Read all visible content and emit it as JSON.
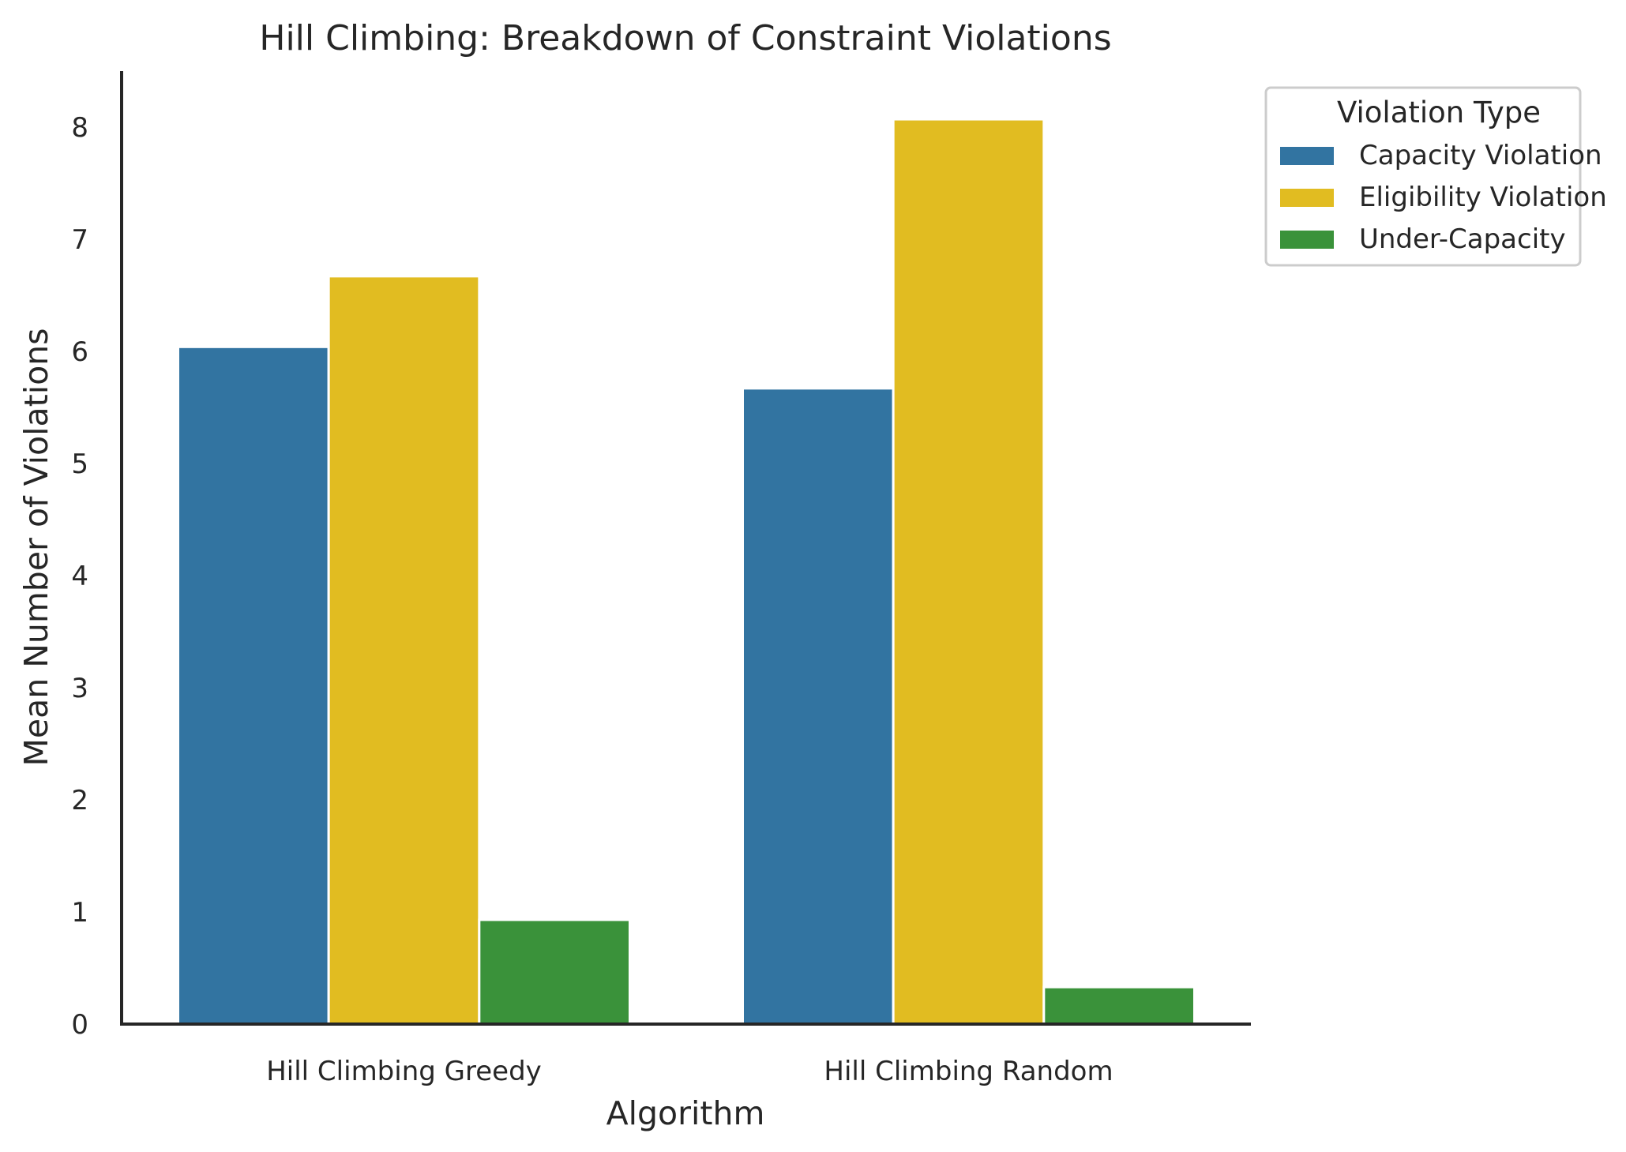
{
  "chart_data": {
    "type": "bar",
    "title": "Hill Climbing: Breakdown of Constraint Violations",
    "xlabel": "Algorithm",
    "ylabel": "Mean Number of Violations",
    "categories": [
      "Hill Climbing Greedy",
      "Hill Climbing Random"
    ],
    "series": [
      {
        "name": "Capacity Violation",
        "values": [
          6.04,
          5.67
        ],
        "color": "#3274a1"
      },
      {
        "name": "Eligibility Violation",
        "values": [
          6.67,
          8.07
        ],
        "color": "#e1bc21"
      },
      {
        "name": "Under-Capacity",
        "values": [
          0.93,
          0.33
        ],
        "color": "#3a923a"
      }
    ],
    "ylim": [
      0,
      8.5
    ],
    "yticks": [
      0,
      1,
      2,
      3,
      4,
      5,
      6,
      7,
      8
    ],
    "grid": false,
    "legend": {
      "title": "Violation Type",
      "placement": "outside top-right"
    }
  }
}
